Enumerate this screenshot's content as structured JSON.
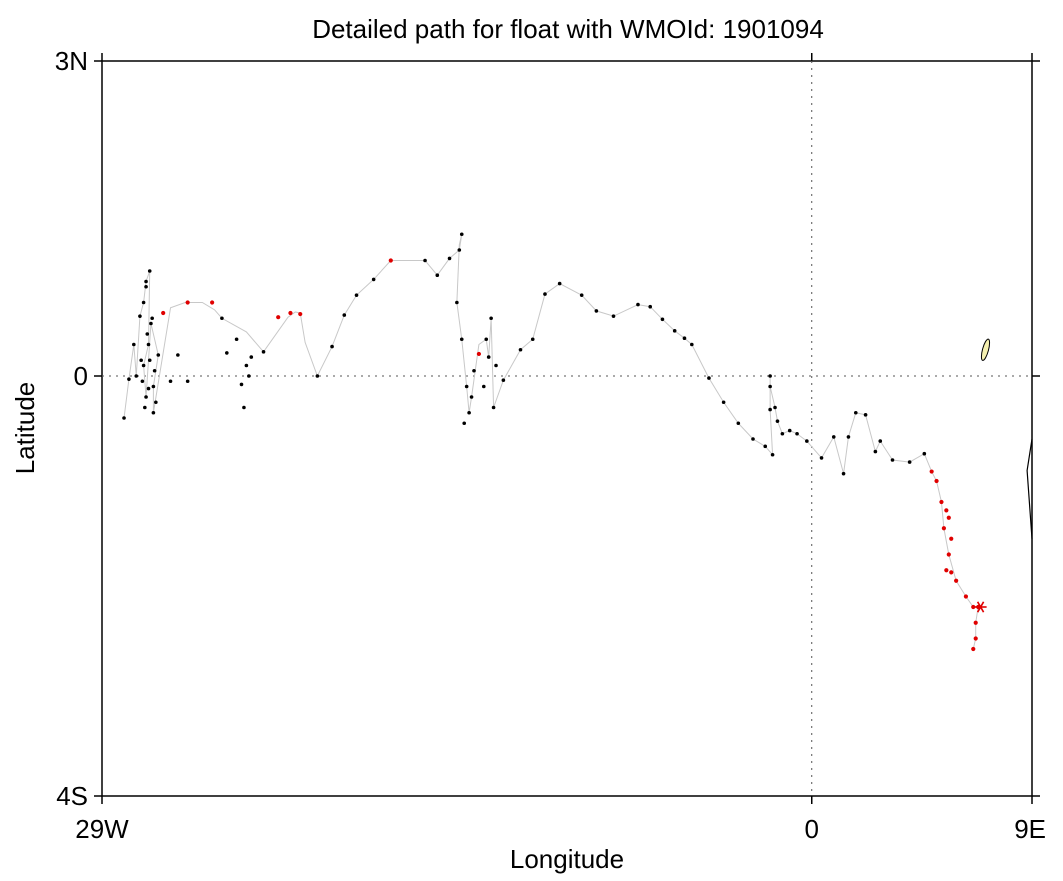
{
  "chart_data": {
    "type": "scatter",
    "title": "Detailed path for float with WMOId: 1901094",
    "xlabel": "Longitude",
    "ylabel": "Latitude",
    "xlim": [
      -29,
      9
    ],
    "ylim": [
      -4,
      3
    ],
    "x_ticks": [
      {
        "value": -29,
        "label": "29W"
      },
      {
        "value": 0,
        "label": "0"
      },
      {
        "value": 9,
        "label": "9E"
      }
    ],
    "y_ticks": [
      {
        "value": 3,
        "label": "3N"
      },
      {
        "value": 0,
        "label": "0"
      },
      {
        "value": -4,
        "label": "4S"
      }
    ],
    "reference_lines": {
      "x": 0,
      "y": 0,
      "style": "dotted"
    },
    "colors": {
      "path": "#c8c8c8",
      "point": "#000000",
      "highlight": "#e00000",
      "island_fill": "#f5f0b0"
    },
    "path": [
      [
        -28.1,
        -0.4
      ],
      [
        -27.9,
        -0.03
      ],
      [
        -27.7,
        0.3
      ],
      [
        -27.6,
        0.0
      ],
      [
        -27.45,
        0.57
      ],
      [
        -27.3,
        0.7
      ],
      [
        -27.2,
        0.9
      ],
      [
        -27.05,
        1.0
      ],
      [
        -27.1,
        0.3
      ],
      [
        -27.3,
        0.1
      ],
      [
        -27.2,
        -0.2
      ],
      [
        -27.0,
        0.5
      ],
      [
        -26.7,
        0.2
      ],
      [
        -26.9,
        -0.1
      ],
      [
        -26.9,
        -0.35
      ],
      [
        -26.2,
        0.65
      ],
      [
        -25.6,
        0.7
      ],
      [
        -24.9,
        0.7
      ],
      [
        -24.4,
        0.63
      ],
      [
        -24.1,
        0.55
      ],
      [
        -23.1,
        0.42
      ],
      [
        -22.4,
        0.23
      ],
      [
        -21.4,
        0.56
      ],
      [
        -21.1,
        0.61
      ],
      [
        -20.9,
        0.6
      ],
      [
        -20.7,
        0.32
      ],
      [
        -20.2,
        0.0
      ],
      [
        -19.6,
        0.28
      ],
      [
        -19.1,
        0.58
      ],
      [
        -18.6,
        0.77
      ],
      [
        -17.9,
        0.92
      ],
      [
        -17.2,
        1.1
      ],
      [
        -15.8,
        1.1
      ],
      [
        -15.3,
        0.96
      ],
      [
        -14.8,
        1.12
      ],
      [
        -14.4,
        1.2
      ],
      [
        -14.3,
        1.35
      ],
      [
        -14.4,
        1.25
      ],
      [
        -14.5,
        0.7
      ],
      [
        -14.3,
        0.35
      ],
      [
        -14.1,
        -0.1
      ],
      [
        -14.0,
        -0.35
      ],
      [
        -13.9,
        -0.2
      ],
      [
        -13.6,
        0.3
      ],
      [
        -13.3,
        0.35
      ],
      [
        -13.2,
        0.18
      ],
      [
        -13.1,
        0.55
      ],
      [
        -13.0,
        -0.3
      ],
      [
        -12.6,
        -0.04
      ],
      [
        -11.9,
        0.25
      ],
      [
        -11.4,
        0.35
      ],
      [
        -10.9,
        0.78
      ],
      [
        -10.3,
        0.88
      ],
      [
        -9.4,
        0.77
      ],
      [
        -8.8,
        0.62
      ],
      [
        -8.1,
        0.57
      ],
      [
        -7.1,
        0.68
      ],
      [
        -6.6,
        0.66
      ],
      [
        -6.1,
        0.54
      ],
      [
        -5.6,
        0.43
      ],
      [
        -5.2,
        0.36
      ],
      [
        -4.9,
        0.3
      ],
      [
        -4.2,
        -0.02
      ],
      [
        -3.6,
        -0.25
      ],
      [
        -3.0,
        -0.45
      ],
      [
        -2.4,
        -0.6
      ],
      [
        -1.9,
        -0.67
      ],
      [
        -1.6,
        -0.75
      ],
      [
        -1.7,
        -0.32
      ],
      [
        -1.7,
        0.0
      ],
      [
        -1.7,
        -0.1
      ],
      [
        -1.5,
        -0.3
      ],
      [
        -1.4,
        -0.43
      ],
      [
        -1.2,
        -0.55
      ],
      [
        -0.9,
        -0.52
      ],
      [
        -0.6,
        -0.55
      ],
      [
        -0.2,
        -0.62
      ],
      [
        0.4,
        -0.78
      ],
      [
        0.9,
        -0.58
      ],
      [
        1.3,
        -0.93
      ],
      [
        1.5,
        -0.58
      ],
      [
        1.8,
        -0.35
      ],
      [
        2.2,
        -0.37
      ],
      [
        2.6,
        -0.72
      ],
      [
        2.8,
        -0.62
      ],
      [
        3.3,
        -0.8
      ],
      [
        4.0,
        -0.82
      ],
      [
        4.6,
        -0.74
      ],
      [
        4.9,
        -0.91
      ],
      [
        5.1,
        -1.0
      ],
      [
        5.3,
        -1.2
      ],
      [
        5.4,
        -1.45
      ],
      [
        5.6,
        -1.7
      ],
      [
        5.9,
        -1.95
      ],
      [
        6.3,
        -2.1
      ],
      [
        6.6,
        -2.2
      ],
      [
        6.8,
        -2.2
      ],
      [
        6.7,
        -2.35
      ],
      [
        6.7,
        -2.5
      ],
      [
        6.6,
        -2.6
      ]
    ],
    "black_points": [
      [
        -28.1,
        -0.4
      ],
      [
        -27.9,
        -0.03
      ],
      [
        -27.7,
        0.3
      ],
      [
        -27.6,
        0.0
      ],
      [
        -27.45,
        0.57
      ],
      [
        -27.3,
        0.7
      ],
      [
        -27.2,
        0.9
      ],
      [
        -27.05,
        1.0
      ],
      [
        -27.1,
        0.3
      ],
      [
        -27.3,
        0.1
      ],
      [
        -27.2,
        -0.2
      ],
      [
        -27.0,
        0.5
      ],
      [
        -26.7,
        0.2
      ],
      [
        -26.9,
        -0.1
      ],
      [
        -26.9,
        -0.35
      ],
      [
        -27.4,
        0.15
      ],
      [
        -27.35,
        -0.05
      ],
      [
        -27.15,
        0.4
      ],
      [
        -27.25,
        -0.3
      ],
      [
        -27.05,
        0.15
      ],
      [
        -26.95,
        0.55
      ],
      [
        -27.2,
        0.85
      ],
      [
        -26.8,
        -0.25
      ],
      [
        -27.1,
        -0.12
      ],
      [
        -26.85,
        0.05
      ],
      [
        -26.2,
        -0.05
      ],
      [
        -25.9,
        0.2
      ],
      [
        -25.5,
        -0.05
      ],
      [
        -24.1,
        0.55
      ],
      [
        -23.9,
        0.22
      ],
      [
        -23.5,
        0.35
      ],
      [
        -23.2,
        -0.3
      ],
      [
        -23.1,
        0.1
      ],
      [
        -22.4,
        0.23
      ],
      [
        -22.9,
        0.18
      ],
      [
        -23.3,
        -0.08
      ],
      [
        -23.0,
        -0.0
      ],
      [
        -20.2,
        0.0
      ],
      [
        -19.6,
        0.28
      ],
      [
        -19.1,
        0.58
      ],
      [
        -18.6,
        0.77
      ],
      [
        -17.9,
        0.92
      ],
      [
        -15.8,
        1.1
      ],
      [
        -15.3,
        0.96
      ],
      [
        -14.8,
        1.12
      ],
      [
        -14.4,
        1.2
      ],
      [
        -14.3,
        1.35
      ],
      [
        -14.5,
        0.7
      ],
      [
        -14.3,
        0.35
      ],
      [
        -14.1,
        -0.1
      ],
      [
        -14.0,
        -0.35
      ],
      [
        -13.9,
        -0.2
      ],
      [
        -13.3,
        0.35
      ],
      [
        -13.2,
        0.18
      ],
      [
        -13.1,
        0.55
      ],
      [
        -13.0,
        -0.3
      ],
      [
        -12.6,
        -0.04
      ],
      [
        -11.9,
        0.25
      ],
      [
        -11.4,
        0.35
      ],
      [
        -10.9,
        0.78
      ],
      [
        -10.3,
        0.88
      ],
      [
        -9.4,
        0.77
      ],
      [
        -8.8,
        0.62
      ],
      [
        -8.1,
        0.57
      ],
      [
        -7.1,
        0.68
      ],
      [
        -6.6,
        0.66
      ],
      [
        -6.1,
        0.54
      ],
      [
        -5.6,
        0.43
      ],
      [
        -5.2,
        0.36
      ],
      [
        -4.9,
        0.3
      ],
      [
        -4.2,
        -0.02
      ],
      [
        -3.6,
        -0.25
      ],
      [
        -3.0,
        -0.45
      ],
      [
        -2.4,
        -0.6
      ],
      [
        -1.9,
        -0.67
      ],
      [
        -1.6,
        -0.75
      ],
      [
        -1.7,
        -0.32
      ],
      [
        -1.7,
        0.0
      ],
      [
        -1.7,
        -0.1
      ],
      [
        -1.5,
        -0.3
      ],
      [
        -1.4,
        -0.43
      ],
      [
        -1.2,
        -0.55
      ],
      [
        -0.9,
        -0.52
      ],
      [
        -0.6,
        -0.55
      ],
      [
        -0.2,
        -0.62
      ],
      [
        0.4,
        -0.78
      ],
      [
        0.9,
        -0.58
      ],
      [
        1.3,
        -0.93
      ],
      [
        1.5,
        -0.58
      ],
      [
        1.8,
        -0.35
      ],
      [
        2.2,
        -0.37
      ],
      [
        2.6,
        -0.72
      ],
      [
        2.8,
        -0.62
      ],
      [
        3.3,
        -0.8
      ],
      [
        4.0,
        -0.82
      ],
      [
        4.6,
        -0.74
      ],
      [
        -13.4,
        -0.1
      ],
      [
        -13.8,
        0.05
      ],
      [
        -14.2,
        -0.45
      ],
      [
        -12.9,
        0.1
      ]
    ],
    "red_points": [
      [
        -26.5,
        0.6
      ],
      [
        -25.5,
        0.7
      ],
      [
        -24.5,
        0.7
      ],
      [
        -21.8,
        0.56
      ],
      [
        -21.3,
        0.6
      ],
      [
        -20.9,
        0.59
      ],
      [
        -17.2,
        1.1
      ],
      [
        -13.6,
        0.21
      ],
      [
        4.9,
        -0.91
      ],
      [
        5.1,
        -1.0
      ],
      [
        5.3,
        -1.2
      ],
      [
        5.5,
        -1.28
      ],
      [
        5.6,
        -1.7
      ],
      [
        5.6,
        -1.35
      ],
      [
        5.4,
        -1.45
      ],
      [
        5.5,
        -1.85
      ],
      [
        5.7,
        -1.87
      ],
      [
        5.9,
        -1.95
      ],
      [
        6.3,
        -2.1
      ],
      [
        6.6,
        -2.2
      ],
      [
        6.8,
        -2.2
      ],
      [
        6.7,
        -2.35
      ],
      [
        6.7,
        -2.5
      ],
      [
        6.6,
        -2.6
      ],
      [
        5.7,
        -1.55
      ]
    ],
    "start_marker": [
      6.9,
      -2.2
    ],
    "island": [
      7.1,
      0.25
    ],
    "coast": [
      [
        9,
        -0.6
      ],
      [
        8.8,
        -0.9
      ],
      [
        9,
        -1.55
      ]
    ]
  }
}
